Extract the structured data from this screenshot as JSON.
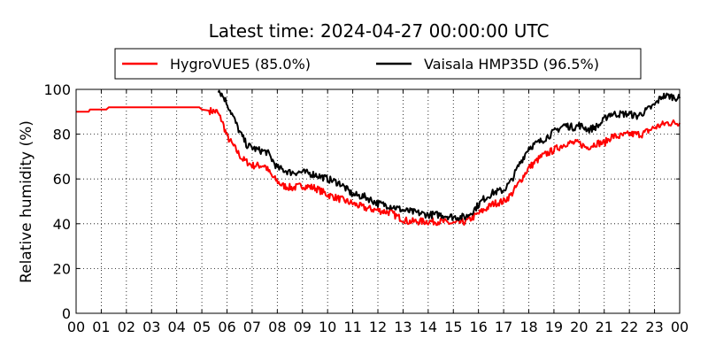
{
  "chart_data": {
    "type": "line",
    "title": "Latest time: 2024-04-27 00:00:00 UTC",
    "xlabel": "",
    "ylabel": "Relative humidity (%)",
    "xlim": [
      0,
      24
    ],
    "ylim": [
      0,
      100
    ],
    "grid": true,
    "legend_position": "top",
    "x_tick_labels": [
      "00",
      "01",
      "02",
      "03",
      "04",
      "05",
      "06",
      "07",
      "08",
      "09",
      "10",
      "11",
      "12",
      "13",
      "14",
      "15",
      "16",
      "17",
      "18",
      "19",
      "20",
      "21",
      "22",
      "23",
      "00"
    ],
    "y_ticks": [
      0,
      20,
      40,
      60,
      80,
      100
    ],
    "series": [
      {
        "name": "HygroVUE5 (85.0%)",
        "color": "#ff0000",
        "points": [
          [
            0,
            90
          ],
          [
            0.5,
            90
          ],
          [
            0.55,
            91
          ],
          [
            1.2,
            91
          ],
          [
            1.3,
            92
          ],
          [
            2,
            92
          ],
          [
            3,
            92
          ],
          [
            4,
            92
          ],
          [
            4.9,
            92
          ],
          [
            5,
            91
          ],
          [
            5.6,
            90
          ],
          [
            5.8,
            86
          ],
          [
            6,
            79
          ],
          [
            6.3,
            74
          ],
          [
            6.6,
            69
          ],
          [
            7,
            66
          ],
          [
            7.5,
            66
          ],
          [
            7.8,
            61
          ],
          [
            8.2,
            57
          ],
          [
            8.6,
            56
          ],
          [
            9,
            57
          ],
          [
            9.5,
            56
          ],
          [
            10,
            53
          ],
          [
            10.5,
            51
          ],
          [
            11,
            49
          ],
          [
            11.5,
            47
          ],
          [
            12,
            46
          ],
          [
            12.5,
            45
          ],
          [
            12.8,
            43
          ],
          [
            13.2,
            41
          ],
          [
            13.5,
            41
          ],
          [
            14,
            41
          ],
          [
            14.5,
            41
          ],
          [
            15,
            40
          ],
          [
            15.5,
            41
          ],
          [
            15.8,
            43
          ],
          [
            16.2,
            46
          ],
          [
            16.6,
            49
          ],
          [
            17,
            50
          ],
          [
            17.3,
            53
          ],
          [
            17.6,
            58
          ],
          [
            18,
            65
          ],
          [
            18.5,
            70
          ],
          [
            19,
            73
          ],
          [
            19.5,
            76
          ],
          [
            20,
            76
          ],
          [
            20.3,
            74
          ],
          [
            20.7,
            76
          ],
          [
            21,
            76
          ],
          [
            21.3,
            79
          ],
          [
            21.6,
            79
          ],
          [
            22,
            80
          ],
          [
            22.5,
            80
          ],
          [
            23,
            83
          ],
          [
            23.5,
            85
          ],
          [
            24,
            85
          ]
        ]
      },
      {
        "name": "Vaisala HMP35D (96.5%)",
        "color": "#000000",
        "points": [
          [
            5.65,
            100
          ],
          [
            5.9,
            96
          ],
          [
            6.2,
            89
          ],
          [
            6.5,
            81
          ],
          [
            6.8,
            75
          ],
          [
            7.2,
            73
          ],
          [
            7.6,
            72
          ],
          [
            8,
            65
          ],
          [
            8.5,
            63
          ],
          [
            9,
            63
          ],
          [
            9.5,
            62
          ],
          [
            10,
            60
          ],
          [
            10.5,
            58
          ],
          [
            11,
            53
          ],
          [
            11.5,
            52
          ],
          [
            12,
            49
          ],
          [
            12.5,
            48
          ],
          [
            13,
            46
          ],
          [
            13.5,
            45
          ],
          [
            14,
            44
          ],
          [
            14.5,
            44
          ],
          [
            15,
            43
          ],
          [
            15.5,
            43
          ],
          [
            15.8,
            46
          ],
          [
            16.2,
            51
          ],
          [
            16.6,
            54
          ],
          [
            17,
            55
          ],
          [
            17.3,
            59
          ],
          [
            17.6,
            66
          ],
          [
            18,
            74
          ],
          [
            18.5,
            77
          ],
          [
            19,
            81
          ],
          [
            19.4,
            84
          ],
          [
            19.8,
            83
          ],
          [
            20,
            84
          ],
          [
            20.4,
            82
          ],
          [
            20.8,
            84
          ],
          [
            21.2,
            89
          ],
          [
            21.6,
            89
          ],
          [
            22,
            89
          ],
          [
            22.3,
            88
          ],
          [
            22.6,
            90
          ],
          [
            23,
            93
          ],
          [
            23.3,
            97
          ],
          [
            23.6,
            97
          ],
          [
            24,
            96
          ]
        ]
      }
    ]
  }
}
